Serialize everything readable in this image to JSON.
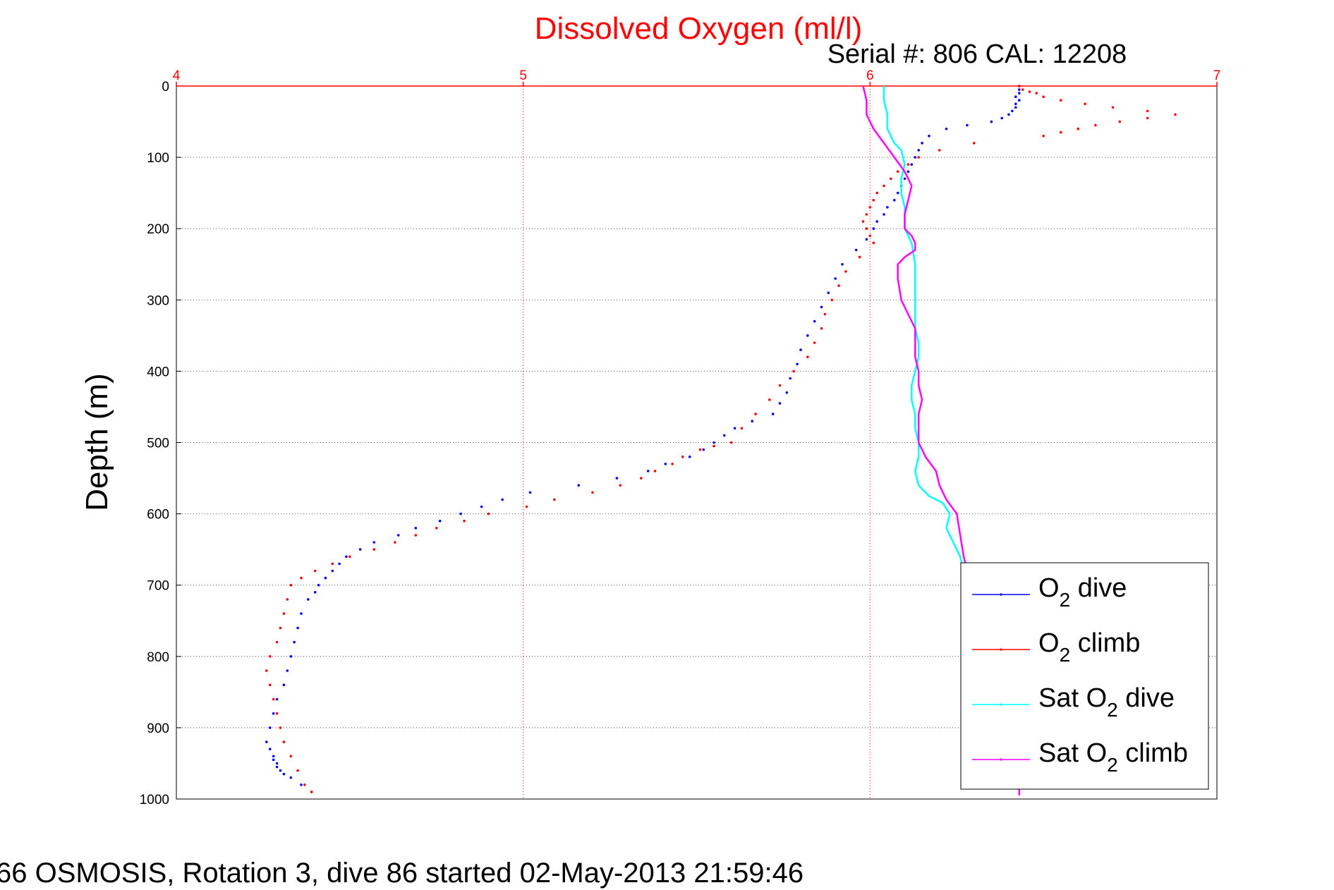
{
  "chart_data": {
    "type": "scatter",
    "title": "Dissolved Oxygen (ml/l)",
    "subtitle": "Serial #: 806  CAL: 12208",
    "footer": "66 OSMOSIS, Rotation 3, dive 86 started 02-May-2013 21:59:46",
    "xlabel": "",
    "ylabel": "Depth (m)",
    "xlim": [
      4,
      7
    ],
    "ylim": [
      0,
      1000
    ],
    "y_reversed": true,
    "x_axis_position": "top",
    "x_ticks": [
      "4",
      "5",
      "6",
      "7"
    ],
    "y_ticks": [
      "0",
      "100",
      "200",
      "300",
      "400",
      "500",
      "600",
      "700",
      "800",
      "900",
      "1000"
    ],
    "grid": true,
    "legend_position": "bottom-right",
    "colors": {
      "title": "#ff0000",
      "x_axis": "#ff0000",
      "dive": "#0000ff",
      "climb": "#ff0000",
      "sat_dive": "#00ffff",
      "sat_climb": "#ff00ff",
      "grid": "#555555",
      "frame": "#000000"
    },
    "series": [
      {
        "name": "O2 dive",
        "legend_base": "O",
        "legend_sub": "2",
        "legend_rest": " dive",
        "style": "dots",
        "color": "#0000ff",
        "x": [
          6.43,
          6.43,
          6.43,
          6.42,
          6.43,
          6.42,
          6.42,
          6.41,
          6.4,
          6.38,
          6.35,
          6.28,
          6.22,
          6.17,
          6.15,
          6.14,
          6.13,
          6.12,
          6.11,
          6.1,
          6.09,
          6.08,
          6.07,
          6.05,
          6.04,
          6.02,
          6.01,
          5.99,
          5.96,
          5.92,
          5.9,
          5.88,
          5.86,
          5.84,
          5.82,
          5.8,
          5.79,
          5.77,
          5.76,
          5.74,
          5.72,
          5.66,
          5.61,
          5.58,
          5.55,
          5.52,
          5.48,
          5.41,
          5.36,
          5.27,
          5.16,
          5.02,
          4.94,
          4.88,
          4.82,
          4.76,
          4.69,
          4.64,
          4.57,
          4.53,
          4.49,
          4.47,
          4.45,
          4.43,
          4.41,
          4.4,
          4.38,
          4.36,
          4.35,
          4.34,
          4.33,
          4.32,
          4.31,
          4.29,
          4.28,
          4.27,
          4.26,
          4.27,
          4.28,
          4.28,
          4.29,
          4.29,
          4.3,
          4.31,
          4.33,
          4.36,
          4.39
        ],
        "y": [
          0,
          5,
          10,
          15,
          20,
          25,
          30,
          35,
          40,
          45,
          50,
          55,
          60,
          70,
          80,
          90,
          100,
          110,
          120,
          130,
          140,
          150,
          160,
          170,
          180,
          190,
          200,
          215,
          230,
          250,
          270,
          290,
          310,
          330,
          350,
          370,
          390,
          410,
          430,
          445,
          460,
          470,
          480,
          490,
          500,
          510,
          520,
          530,
          540,
          550,
          560,
          570,
          580,
          590,
          600,
          610,
          620,
          630,
          640,
          650,
          660,
          670,
          680,
          690,
          700,
          710,
          720,
          740,
          760,
          780,
          800,
          820,
          840,
          860,
          880,
          900,
          920,
          930,
          940,
          945,
          950,
          955,
          960,
          965,
          970,
          980,
          990
        ]
      },
      {
        "name": "O2 climb",
        "legend_base": "O",
        "legend_sub": "2",
        "legend_rest": " climb",
        "style": "dots",
        "color": "#ff0000",
        "x": [
          6.43,
          6.44,
          6.46,
          6.48,
          6.5,
          6.55,
          6.62,
          6.7,
          6.8,
          6.88,
          6.8,
          6.72,
          6.65,
          6.6,
          6.55,
          6.5,
          6.3,
          6.2,
          6.14,
          6.11,
          6.08,
          6.06,
          6.04,
          6.02,
          6.01,
          6.0,
          5.99,
          5.98,
          5.99,
          6.0,
          6.01,
          5.97,
          5.93,
          5.91,
          5.89,
          5.87,
          5.86,
          5.84,
          5.82,
          5.78,
          5.74,
          5.71,
          5.67,
          5.63,
          5.6,
          5.55,
          5.51,
          5.46,
          5.43,
          5.38,
          5.34,
          5.28,
          5.2,
          5.09,
          5.01,
          4.9,
          4.83,
          4.75,
          4.69,
          4.63,
          4.57,
          4.5,
          4.45,
          4.4,
          4.36,
          4.33,
          4.32,
          4.31,
          4.3,
          4.29,
          4.27,
          4.26,
          4.27,
          4.28,
          4.29,
          4.3,
          4.31,
          4.33,
          4.35,
          4.37,
          4.39
        ],
        "y": [
          0,
          5,
          8,
          10,
          15,
          20,
          25,
          30,
          35,
          40,
          45,
          50,
          55,
          60,
          65,
          70,
          80,
          90,
          100,
          110,
          120,
          130,
          140,
          150,
          160,
          170,
          180,
          190,
          200,
          210,
          220,
          240,
          260,
          280,
          300,
          320,
          340,
          360,
          380,
          400,
          420,
          440,
          460,
          480,
          500,
          505,
          510,
          520,
          530,
          540,
          550,
          560,
          570,
          580,
          590,
          600,
          610,
          620,
          630,
          640,
          650,
          660,
          670,
          680,
          690,
          700,
          720,
          740,
          760,
          780,
          800,
          820,
          840,
          860,
          880,
          900,
          920,
          940,
          960,
          980,
          990
        ]
      },
      {
        "name": "Sat O2 dive",
        "legend_base": "Sat O",
        "legend_sub": "2",
        "legend_rest": " dive",
        "style": "line",
        "color": "#00ffff",
        "x": [
          6.04,
          6.04,
          6.05,
          6.05,
          6.07,
          6.09,
          6.1,
          6.09,
          6.09,
          6.1,
          6.1,
          6.12,
          6.13,
          6.13,
          6.13,
          6.13,
          6.14,
          6.14,
          6.13,
          6.12,
          6.12,
          6.13,
          6.13,
          6.14,
          6.14,
          6.13,
          6.14,
          6.17,
          6.21,
          6.23,
          6.22,
          6.24,
          6.26,
          6.27
        ],
        "y": [
          0,
          20,
          40,
          60,
          80,
          90,
          110,
          130,
          150,
          170,
          200,
          220,
          250,
          280,
          310,
          340,
          360,
          380,
          400,
          420,
          440,
          460,
          480,
          500,
          520,
          540,
          560,
          575,
          585,
          600,
          620,
          640,
          660,
          680
        ]
      },
      {
        "name": "Sat O2 climb",
        "legend_base": "Sat O",
        "legend_sub": "2",
        "legend_rest": " climb",
        "style": "line",
        "color": "#ff00ff",
        "x": [
          5.98,
          5.99,
          5.99,
          6.01,
          6.04,
          6.07,
          6.1,
          6.12,
          6.11,
          6.1,
          6.1,
          6.12,
          6.13,
          6.13,
          6.1,
          6.08,
          6.08,
          6.09,
          6.11,
          6.13,
          6.13,
          6.13,
          6.14,
          6.14,
          6.15,
          6.14,
          6.14,
          6.14,
          6.16,
          6.19,
          6.2,
          6.22,
          6.25,
          6.26,
          6.27,
          6.29,
          6.32,
          6.35,
          6.38,
          6.41,
          6.42,
          6.43,
          6.43,
          6.43
        ],
        "y": [
          0,
          20,
          40,
          60,
          80,
          100,
          120,
          140,
          160,
          180,
          200,
          210,
          220,
          230,
          240,
          250,
          270,
          300,
          320,
          340,
          360,
          380,
          400,
          420,
          440,
          460,
          480,
          500,
          520,
          540,
          560,
          580,
          600,
          630,
          660,
          700,
          750,
          800,
          850,
          900,
          940,
          960,
          980,
          995
        ]
      }
    ]
  }
}
